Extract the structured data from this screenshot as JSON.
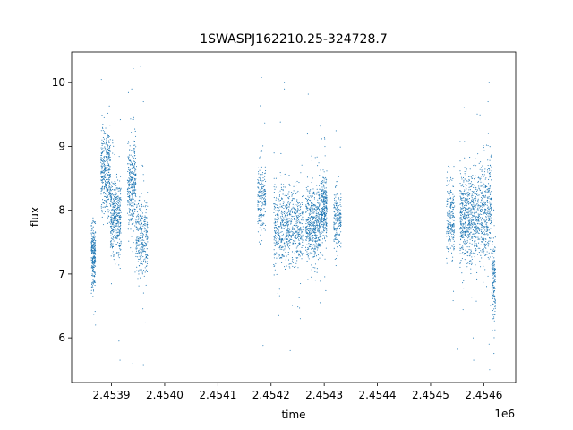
{
  "chart_data": {
    "type": "scatter",
    "title": "1SWASPJ162210.25-324728.7",
    "xlabel": "time",
    "ylabel": "flux",
    "x_offset_label": "1e6",
    "xlim": [
      2453825,
      2454660
    ],
    "ylim": [
      5.3,
      10.48
    ],
    "x_ticks": [
      2453900,
      2454000,
      2454100,
      2454200,
      2454300,
      2454400,
      2454500,
      2454600
    ],
    "x_tick_labels": [
      "2.4539",
      "2.4540",
      "2.4541",
      "2.4542",
      "2.4543",
      "2.4544",
      "2.4545",
      "2.4546"
    ],
    "y_ticks": [
      6,
      7,
      8,
      9,
      10
    ],
    "y_tick_labels": [
      "6",
      "7",
      "8",
      "9",
      "10"
    ],
    "grid": false,
    "marker_color": "#1f77b4",
    "clusters": [
      {
        "x_start": 2453862,
        "x_end": 2453870,
        "y_center": 7.3,
        "y_spread": 0.25,
        "n": 260
      },
      {
        "x_start": 2453880,
        "x_end": 2453898,
        "y_center": 8.6,
        "y_spread": 0.35,
        "n": 380
      },
      {
        "x_start": 2453898,
        "x_end": 2453918,
        "y_center": 7.9,
        "y_spread": 0.3,
        "n": 420
      },
      {
        "x_start": 2453930,
        "x_end": 2453946,
        "y_center": 8.4,
        "y_spread": 0.35,
        "n": 320
      },
      {
        "x_start": 2453946,
        "x_end": 2453968,
        "y_center": 7.6,
        "y_spread": 0.3,
        "n": 320
      },
      {
        "x_start": 2454175,
        "x_end": 2454190,
        "y_center": 8.2,
        "y_spread": 0.3,
        "n": 200
      },
      {
        "x_start": 2454205,
        "x_end": 2454260,
        "y_center": 7.75,
        "y_spread": 0.3,
        "n": 700
      },
      {
        "x_start": 2454265,
        "x_end": 2454295,
        "y_center": 7.8,
        "y_spread": 0.3,
        "n": 550
      },
      {
        "x_start": 2454295,
        "x_end": 2454305,
        "y_center": 8.05,
        "y_spread": 0.25,
        "n": 280
      },
      {
        "x_start": 2454318,
        "x_end": 2454332,
        "y_center": 7.85,
        "y_spread": 0.25,
        "n": 200
      },
      {
        "x_start": 2454530,
        "x_end": 2454545,
        "y_center": 7.85,
        "y_spread": 0.3,
        "n": 220
      },
      {
        "x_start": 2454555,
        "x_end": 2454590,
        "y_center": 7.9,
        "y_spread": 0.35,
        "n": 650
      },
      {
        "x_start": 2454590,
        "x_end": 2454615,
        "y_center": 8.0,
        "y_spread": 0.4,
        "n": 380
      },
      {
        "x_start": 2454615,
        "x_end": 2454622,
        "y_center": 6.9,
        "y_spread": 0.3,
        "n": 160
      }
    ],
    "outliers": [
      [
        2453881,
        10.05
      ],
      [
        2453955,
        10.25
      ],
      [
        2453941,
        10.22
      ],
      [
        2453960,
        9.7
      ],
      [
        2453938,
        9.9
      ],
      [
        2454182,
        10.08
      ],
      [
        2454225,
        10.0
      ],
      [
        2454270,
        9.82
      ],
      [
        2454225,
        9.9
      ],
      [
        2454610,
        10.0
      ],
      [
        2454608,
        9.7
      ],
      [
        2453870,
        6.2
      ],
      [
        2453914,
        5.95
      ],
      [
        2453916,
        5.65
      ],
      [
        2453940,
        5.6
      ],
      [
        2453960,
        5.58
      ],
      [
        2454185,
        5.88
      ],
      [
        2454228,
        5.7
      ],
      [
        2454236,
        5.8
      ],
      [
        2454255,
        6.3
      ],
      [
        2454550,
        5.82
      ],
      [
        2454581,
        5.65
      ],
      [
        2454611,
        5.5
      ],
      [
        2454610,
        5.9
      ],
      [
        2454580,
        6.0
      ]
    ]
  }
}
